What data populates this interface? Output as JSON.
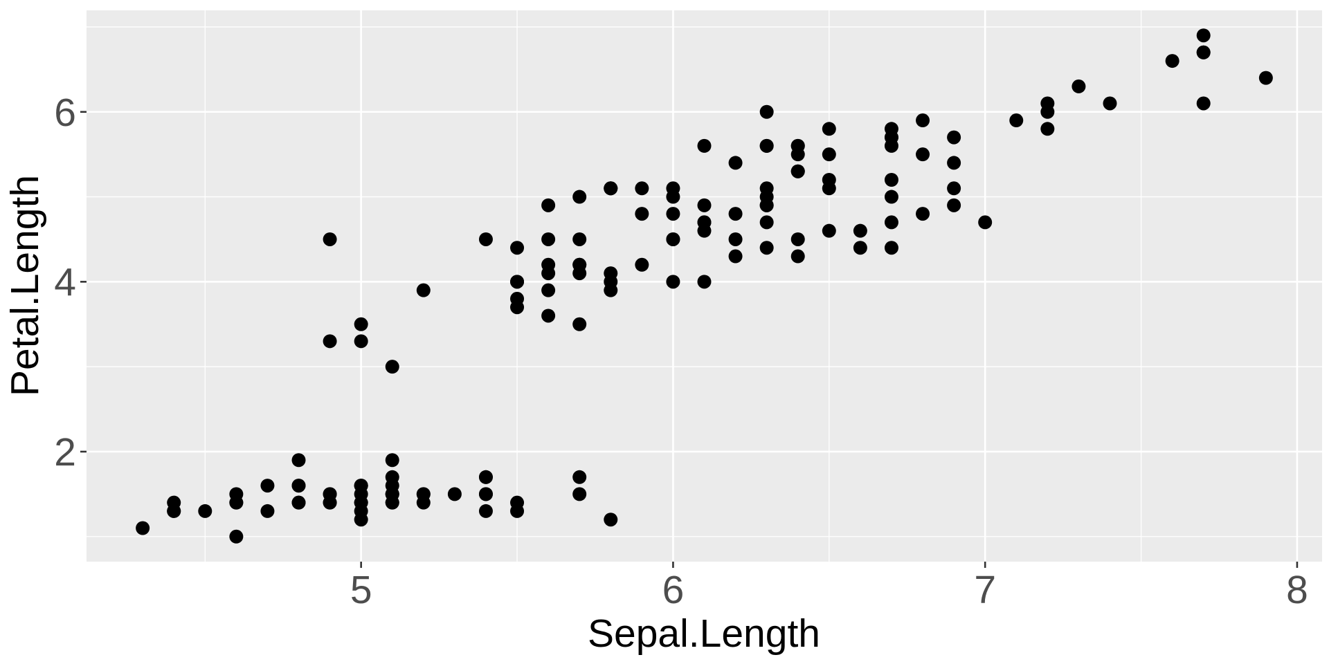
{
  "chart_data": {
    "type": "scatter",
    "title": "",
    "xlabel": "Sepal.Length",
    "ylabel": "Petal.Length",
    "xlim": [
      4.12,
      8.08
    ],
    "ylim": [
      0.705,
      7.195
    ],
    "x_ticks": [
      5,
      6,
      7,
      8
    ],
    "y_ticks": [
      2,
      4,
      6
    ],
    "x_minor": [
      4.5,
      5.5,
      6.5,
      7.5
    ],
    "y_minor": [
      1,
      3,
      5,
      7
    ],
    "grid": true,
    "legend": "none",
    "point_color": "#000000",
    "panel_color": "#ebebeb",
    "points": [
      [
        5.1,
        1.4
      ],
      [
        4.9,
        1.4
      ],
      [
        4.7,
        1.3
      ],
      [
        4.6,
        1.5
      ],
      [
        5.0,
        1.4
      ],
      [
        5.4,
        1.7
      ],
      [
        4.6,
        1.4
      ],
      [
        5.0,
        1.5
      ],
      [
        4.4,
        1.4
      ],
      [
        4.9,
        1.5
      ],
      [
        5.4,
        1.5
      ],
      [
        4.8,
        1.6
      ],
      [
        4.8,
        1.4
      ],
      [
        4.3,
        1.1
      ],
      [
        5.8,
        1.2
      ],
      [
        5.7,
        1.5
      ],
      [
        5.4,
        1.3
      ],
      [
        5.1,
        1.4
      ],
      [
        5.7,
        1.7
      ],
      [
        5.1,
        1.5
      ],
      [
        5.4,
        1.7
      ],
      [
        5.1,
        1.5
      ],
      [
        4.6,
        1.0
      ],
      [
        5.1,
        1.7
      ],
      [
        4.8,
        1.9
      ],
      [
        5.0,
        1.6
      ],
      [
        5.0,
        1.6
      ],
      [
        5.2,
        1.5
      ],
      [
        5.2,
        1.4
      ],
      [
        4.7,
        1.6
      ],
      [
        4.8,
        1.6
      ],
      [
        5.4,
        1.5
      ],
      [
        5.2,
        1.5
      ],
      [
        5.5,
        1.4
      ],
      [
        4.9,
        1.5
      ],
      [
        5.0,
        1.2
      ],
      [
        5.5,
        1.3
      ],
      [
        4.9,
        1.4
      ],
      [
        4.4,
        1.3
      ],
      [
        5.1,
        1.5
      ],
      [
        5.0,
        1.3
      ],
      [
        4.5,
        1.3
      ],
      [
        4.4,
        1.3
      ],
      [
        5.0,
        1.6
      ],
      [
        5.1,
        1.9
      ],
      [
        4.8,
        1.4
      ],
      [
        5.1,
        1.6
      ],
      [
        4.6,
        1.4
      ],
      [
        5.3,
        1.5
      ],
      [
        5.0,
        1.4
      ],
      [
        7.0,
        4.7
      ],
      [
        6.4,
        4.5
      ],
      [
        6.9,
        4.9
      ],
      [
        5.5,
        4.0
      ],
      [
        6.5,
        4.6
      ],
      [
        5.7,
        4.5
      ],
      [
        6.3,
        4.7
      ],
      [
        4.9,
        3.3
      ],
      [
        6.6,
        4.6
      ],
      [
        5.2,
        3.9
      ],
      [
        5.0,
        3.5
      ],
      [
        5.9,
        4.2
      ],
      [
        6.0,
        4.0
      ],
      [
        6.1,
        4.7
      ],
      [
        5.6,
        3.6
      ],
      [
        6.7,
        4.4
      ],
      [
        5.6,
        4.5
      ],
      [
        5.8,
        4.1
      ],
      [
        6.2,
        4.5
      ],
      [
        5.6,
        3.9
      ],
      [
        5.9,
        4.8
      ],
      [
        6.1,
        4.0
      ],
      [
        6.3,
        4.9
      ],
      [
        6.1,
        4.7
      ],
      [
        6.4,
        4.3
      ],
      [
        6.6,
        4.4
      ],
      [
        6.8,
        4.8
      ],
      [
        6.7,
        5.0
      ],
      [
        6.0,
        4.5
      ],
      [
        5.7,
        3.5
      ],
      [
        5.5,
        3.8
      ],
      [
        5.5,
        3.7
      ],
      [
        5.8,
        3.9
      ],
      [
        6.0,
        5.1
      ],
      [
        5.4,
        4.5
      ],
      [
        6.0,
        4.5
      ],
      [
        6.7,
        4.7
      ],
      [
        6.3,
        4.4
      ],
      [
        5.6,
        4.1
      ],
      [
        5.5,
        4.0
      ],
      [
        5.5,
        4.4
      ],
      [
        6.1,
        4.6
      ],
      [
        5.8,
        4.0
      ],
      [
        5.0,
        3.3
      ],
      [
        5.6,
        4.2
      ],
      [
        5.7,
        4.2
      ],
      [
        5.7,
        4.2
      ],
      [
        6.2,
        4.3
      ],
      [
        5.1,
        3.0
      ],
      [
        5.7,
        4.1
      ],
      [
        6.3,
        6.0
      ],
      [
        5.8,
        5.1
      ],
      [
        7.1,
        5.9
      ],
      [
        6.3,
        5.6
      ],
      [
        6.5,
        5.8
      ],
      [
        7.6,
        6.6
      ],
      [
        4.9,
        4.5
      ],
      [
        7.3,
        6.3
      ],
      [
        6.7,
        5.8
      ],
      [
        7.2,
        6.1
      ],
      [
        6.5,
        5.1
      ],
      [
        6.4,
        5.3
      ],
      [
        6.8,
        5.5
      ],
      [
        5.7,
        5.0
      ],
      [
        5.8,
        5.1
      ],
      [
        6.4,
        5.3
      ],
      [
        6.5,
        5.5
      ],
      [
        7.7,
        6.7
      ],
      [
        7.7,
        6.9
      ],
      [
        6.0,
        5.0
      ],
      [
        6.9,
        5.7
      ],
      [
        5.6,
        4.9
      ],
      [
        7.7,
        6.7
      ],
      [
        6.3,
        4.9
      ],
      [
        6.7,
        5.7
      ],
      [
        7.2,
        6.0
      ],
      [
        6.2,
        4.8
      ],
      [
        6.1,
        4.9
      ],
      [
        6.4,
        5.6
      ],
      [
        7.2,
        5.8
      ],
      [
        7.4,
        6.1
      ],
      [
        7.9,
        6.4
      ],
      [
        6.4,
        5.6
      ],
      [
        6.3,
        5.1
      ],
      [
        6.1,
        5.6
      ],
      [
        7.7,
        6.1
      ],
      [
        6.3,
        5.6
      ],
      [
        6.4,
        5.5
      ],
      [
        6.0,
        4.8
      ],
      [
        6.9,
        5.4
      ],
      [
        6.7,
        5.6
      ],
      [
        6.9,
        5.1
      ],
      [
        5.8,
        5.1
      ],
      [
        6.8,
        5.9
      ],
      [
        6.7,
        5.7
      ],
      [
        6.7,
        5.2
      ],
      [
        6.3,
        5.0
      ],
      [
        6.5,
        5.2
      ],
      [
        6.2,
        5.4
      ],
      [
        5.9,
        5.1
      ]
    ]
  }
}
